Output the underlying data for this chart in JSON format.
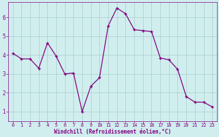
{
  "x": [
    0,
    1,
    2,
    3,
    4,
    5,
    6,
    7,
    8,
    9,
    10,
    11,
    12,
    13,
    14,
    15,
    16,
    17,
    18,
    19,
    20,
    21,
    22,
    23
  ],
  "y": [
    4.1,
    3.8,
    3.8,
    3.3,
    4.65,
    3.95,
    3.0,
    3.05,
    1.0,
    2.35,
    2.8,
    5.55,
    6.5,
    6.2,
    5.35,
    5.3,
    5.25,
    3.85,
    3.75,
    3.25,
    1.8,
    1.5,
    1.5,
    1.25
  ],
  "line_color": "#800080",
  "marker_color": "#800080",
  "bg_color": "#d0eeee",
  "grid_color": "#aacccc",
  "xlabel": "Windchill (Refroidissement éolien,°C)",
  "xlabel_color": "#800080",
  "ylim": [
    0.5,
    6.8
  ],
  "xlim": [
    -0.5,
    23.5
  ],
  "yticks": [
    1,
    2,
    3,
    4,
    5,
    6
  ],
  "xticks": [
    0,
    1,
    2,
    3,
    4,
    5,
    6,
    7,
    8,
    9,
    10,
    11,
    12,
    13,
    14,
    15,
    16,
    17,
    18,
    19,
    20,
    21,
    22,
    23
  ],
  "tick_color": "#800080",
  "spine_color": "#800080",
  "tick_fontsize": 5.0,
  "xlabel_fontsize": 5.5
}
